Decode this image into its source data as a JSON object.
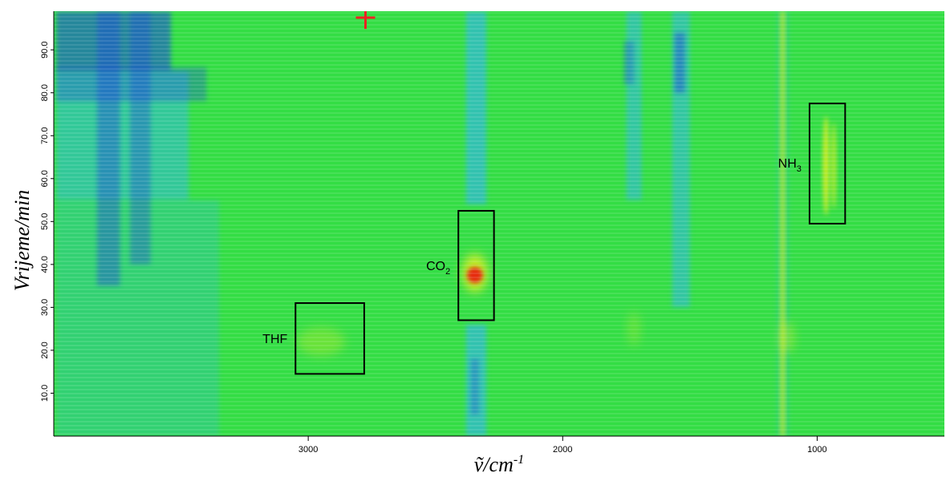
{
  "chart_data": {
    "type": "heatmap",
    "title": "",
    "xlabel": "ṽ/cm",
    "xlabel_sup": "-1",
    "ylabel": "Vrijeme/min",
    "x_reversed": true,
    "xlim": [
      4000,
      500
    ],
    "ylim": [
      0,
      99
    ],
    "x_ticks": [
      {
        "value": 3000,
        "label": "3000"
      },
      {
        "value": 2000,
        "label": "2000"
      },
      {
        "value": 1000,
        "label": "1000"
      }
    ],
    "y_ticks": [
      {
        "value": 10,
        "label": "10.0"
      },
      {
        "value": 20,
        "label": "20.0"
      },
      {
        "value": 30,
        "label": "30.0"
      },
      {
        "value": 40,
        "label": "40.0"
      },
      {
        "value": 50,
        "label": "50.0"
      },
      {
        "value": 60,
        "label": "60.0"
      },
      {
        "value": 70,
        "label": "70.0"
      },
      {
        "value": 80,
        "label": "80.0"
      },
      {
        "value": 90,
        "label": "90.0"
      }
    ],
    "colors": {
      "background": "#33dd44",
      "blue": "#1a4fd6",
      "cyan": "#33b8dd",
      "yellow": "#e6ee22",
      "red": "#e8220e",
      "marker": "#ee2222"
    },
    "annotations": [
      {
        "name": "THF",
        "sub": "",
        "x_range": [
          3050,
          2780
        ],
        "y_range": [
          14.5,
          31
        ]
      },
      {
        "name": "CO",
        "sub": "2",
        "x_range": [
          2410,
          2270
        ],
        "y_range": [
          27,
          52.5
        ]
      },
      {
        "name": "NH",
        "sub": "3",
        "x_range": [
          1030,
          890
        ],
        "y_range": [
          49.5,
          77.5
        ]
      }
    ],
    "marker": {
      "x": 2775,
      "y": 97.5
    }
  }
}
